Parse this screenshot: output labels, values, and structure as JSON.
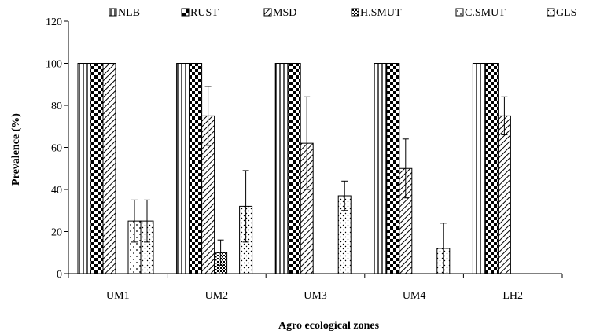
{
  "chart_data": {
    "type": "bar",
    "title": "",
    "xlabel": "Agro ecological zones",
    "ylabel": "Prevalence (%)",
    "ylim": [
      0,
      120
    ],
    "yticks": [
      "0",
      "20",
      "40",
      "60",
      "80",
      "100",
      "120"
    ],
    "categories": [
      "UM1",
      "UM2",
      "UM3",
      "UM4",
      "LH2"
    ],
    "legend_position": "top",
    "series": [
      {
        "name": "NLB",
        "pattern": "vertical-lines",
        "values": [
          100,
          100,
          100,
          100,
          100
        ],
        "errors": [
          0,
          0,
          0,
          0,
          0
        ]
      },
      {
        "name": "RUST",
        "pattern": "checker",
        "values": [
          100,
          100,
          100,
          100,
          100
        ],
        "errors": [
          0,
          0,
          0,
          0,
          0
        ]
      },
      {
        "name": "MSD",
        "pattern": "diagonal-lines",
        "values": [
          100,
          75,
          62,
          50,
          75
        ],
        "errors": [
          0,
          14,
          22,
          14,
          9
        ]
      },
      {
        "name": "H.SMUT",
        "pattern": "dense-dots",
        "values": [
          0,
          10,
          0,
          0,
          0
        ],
        "errors": [
          0,
          6,
          0,
          0,
          0
        ]
      },
      {
        "name": "C.SMUT",
        "pattern": "sparse-dots",
        "values": [
          25,
          0,
          0,
          0,
          0
        ],
        "errors": [
          10,
          0,
          0,
          0,
          0
        ]
      },
      {
        "name": "GLS",
        "pattern": "light-dots",
        "values": [
          25,
          32,
          37,
          12,
          0
        ],
        "errors": [
          10,
          17,
          7,
          12,
          0
        ]
      }
    ]
  }
}
